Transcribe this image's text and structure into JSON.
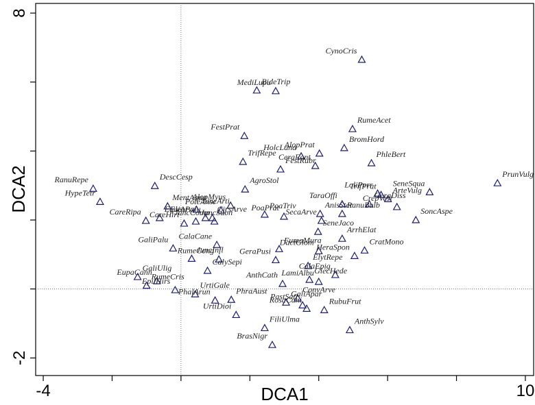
{
  "chart_data": {
    "type": "scatter",
    "xlabel": "DCA1",
    "ylabel": "DCA2",
    "xlim": [
      -4.22,
      10.24
    ],
    "ylim": [
      -2.51,
      8.28
    ],
    "xticks": [
      -4,
      10
    ],
    "xminor": [
      -2,
      0,
      2,
      4,
      6,
      8
    ],
    "yticks": [
      -2,
      8
    ],
    "yminor": [
      0,
      2,
      4,
      6
    ],
    "reference_lines": {
      "x": 0,
      "y": 0
    },
    "color": "#1c1c78",
    "series": [
      {
        "name": null,
        "labels": [
          "CynoCris",
          "BideTrip",
          "MediLupu",
          "RumeAcet",
          "FestPrat",
          "BromHord",
          "AlopPrat",
          "TrifRepe",
          "HolcLana",
          "FestRubr",
          "CeraFont",
          "PhleBert",
          "LoliPerr",
          "ArteVulg",
          "SeneSqua",
          "PrunVulg",
          "RanuRepe",
          "DescCesp",
          "HypeTetr",
          "MentAqua",
          "CareRipa",
          "EquiArve",
          "CareHirt",
          "AgroStol",
          "AlopMyus",
          "JuncArti",
          "PoteAnse",
          "JuncSubn",
          "EleoPalu",
          "CirsArve",
          "JuncComp",
          "PoaTriv",
          "PoaPrat",
          "AnisSter",
          "SecaArve",
          "SeneJaco",
          "TaraOffi",
          "GeraDiss",
          "TrifPrat",
          "RanuBulb",
          "CrepVesi",
          "SoncAspe",
          "CalaCane",
          "ArrhElat",
          "DactGlom",
          "CratMono",
          "GaliPalu",
          "JuncInfl",
          "RumeCong",
          "CalySepi",
          "GeraPusi",
          "FumaMura",
          "HeraSpon",
          "ElytRepe",
          "CalaEpig",
          "GaliUlig",
          "EupaCann",
          "RumeCris",
          "EpilHirs",
          "UrtiGale",
          "LamiAlbu",
          "GlecHede",
          "AnthCath",
          "ConvArve",
          "PastSati",
          "GaliApar",
          "RosaCani",
          "RubuFrut",
          "PhalArun",
          "PhraAust",
          "UrtiDioi",
          "FiliUlma",
          "BrasNigr",
          "AnthSylv"
        ],
        "x": [
          5.25,
          2.2,
          2.75,
          4.98,
          1.84,
          4.74,
          4.02,
          1.8,
          3.49,
          2.89,
          3.9,
          5.53,
          5.71,
          6.01,
          7.22,
          9.19,
          -2.55,
          -0.76,
          -2.35,
          -0.39,
          -1.02,
          -0.62,
          0.09,
          1.86,
          1.44,
          0.45,
          1.16,
          0.43,
          0.71,
          0.91,
          0.97,
          2.43,
          2.99,
          4.04,
          4.08,
          3.98,
          4.68,
          5.47,
          5.81,
          4.68,
          6.27,
          6.82,
          1.04,
          4.68,
          4.0,
          5.33,
          -0.23,
          0.31,
          1.1,
          0.77,
          2.75,
          2.85,
          5.04,
          3.69,
          4.48,
          -1.26,
          -0.7,
          -1.0,
          -0.17,
          0.41,
          4.0,
          3.73,
          2.95,
          3.39,
          3.53,
          3.05,
          3.65,
          4.16,
          0.99,
          1.46,
          1.6,
          2.43,
          2.65,
          4.9
        ],
        "values": [
          6.65,
          5.76,
          5.74,
          4.64,
          4.44,
          4.09,
          3.93,
          3.69,
          3.85,
          3.47,
          3.57,
          3.65,
          2.77,
          2.61,
          2.81,
          3.07,
          2.91,
          2.99,
          2.53,
          2.4,
          1.98,
          2.06,
          1.9,
          2.89,
          2.42,
          2.3,
          2.28,
          1.96,
          2.06,
          2.06,
          1.96,
          2.16,
          2.1,
          2.18,
          1.98,
          1.66,
          2.46,
          2.46,
          2.73,
          2.18,
          2.38,
          2.0,
          1.28,
          1.46,
          1.1,
          1.12,
          1.18,
          0.88,
          0.86,
          0.53,
          0.84,
          1.16,
          0.96,
          0.67,
          0.41,
          0.35,
          0.23,
          0.1,
          -0.03,
          -0.15,
          0.21,
          0.27,
          0.15,
          -0.27,
          -0.47,
          -0.39,
          -0.57,
          -0.61,
          -0.33,
          -0.31,
          -0.75,
          -1.13,
          -1.62,
          -1.19
        ]
      }
    ]
  }
}
